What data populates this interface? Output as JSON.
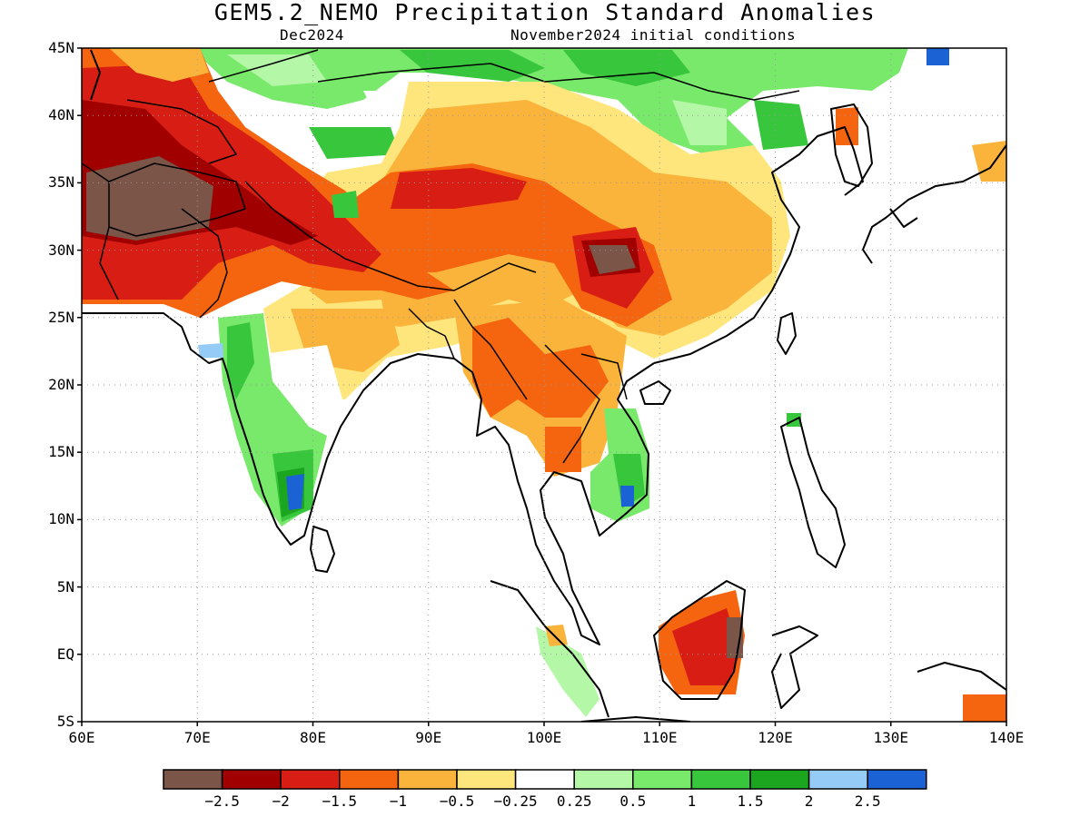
{
  "title": "GEM5.2_NEMO Precipitation Standard Anomalies",
  "valid_month": "Dec2024",
  "init_conditions": "November2024 initial conditions",
  "map": {
    "lon_range": [
      60,
      140
    ],
    "lat_range": [
      -5,
      45
    ],
    "grid": "dotted",
    "lat_ticks": [
      {
        "value": 45,
        "label": "45N"
      },
      {
        "value": 40,
        "label": "40N"
      },
      {
        "value": 35,
        "label": "35N"
      },
      {
        "value": 30,
        "label": "30N"
      },
      {
        "value": 25,
        "label": "25N"
      },
      {
        "value": 20,
        "label": "20N"
      },
      {
        "value": 15,
        "label": "15N"
      },
      {
        "value": 10,
        "label": "10N"
      },
      {
        "value": 5,
        "label": "5N"
      },
      {
        "value": 0,
        "label": "EQ"
      },
      {
        "value": -5,
        "label": "5S"
      }
    ],
    "lon_ticks": [
      {
        "value": 60,
        "label": "60E"
      },
      {
        "value": 70,
        "label": "70E"
      },
      {
        "value": 80,
        "label": "80E"
      },
      {
        "value": 90,
        "label": "90E"
      },
      {
        "value": 100,
        "label": "100E"
      },
      {
        "value": 110,
        "label": "110E"
      },
      {
        "value": 120,
        "label": "120E"
      },
      {
        "value": 130,
        "label": "130E"
      },
      {
        "value": 140,
        "label": "140E"
      }
    ]
  },
  "colorbar": {
    "colors": [
      "#7a5548",
      "#a00000",
      "#d81e14",
      "#f5640f",
      "#fbb43b",
      "#fee67c",
      "#ffffff",
      "#b4f7a6",
      "#78e96a",
      "#37c63c",
      "#1ca51f",
      "#94ccf7",
      "#1b62d4"
    ],
    "labels": [
      "−2.5",
      "−2",
      "−1.5",
      "−1",
      "−0.5",
      "−0.25",
      "0.25",
      "0.5",
      "1",
      "1.5",
      "2",
      "2.5"
    ]
  }
}
